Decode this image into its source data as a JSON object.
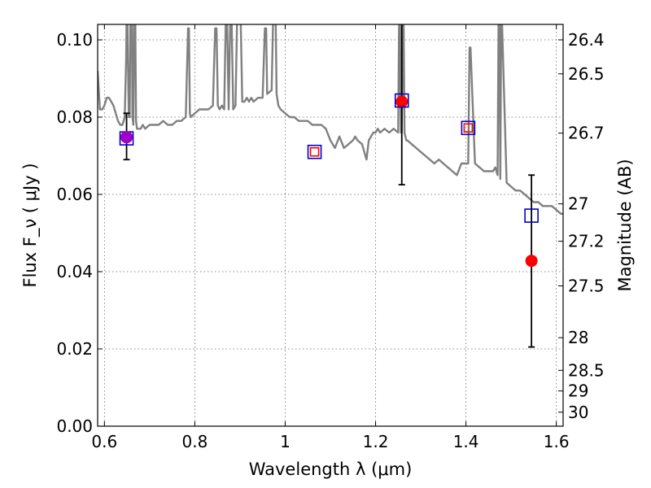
{
  "chart_data": {
    "type": "scatter",
    "title": "",
    "xlabel": "Wavelength  λ (μm)",
    "ylabel": "Flux  F_ν  ( μJy )",
    "ylabel_right": "Magnitude (AB)",
    "xlim": [
      0.585,
      1.615
    ],
    "ylim": [
      0.0,
      0.104
    ],
    "x_ticks": [
      0.6,
      0.8,
      1.0,
      1.2,
      1.4,
      1.6
    ],
    "x_tick_labels": [
      "0.6",
      "0.8",
      "1",
      "1.2",
      "1.4",
      "1.6"
    ],
    "y_ticks": [
      0.0,
      0.02,
      0.04,
      0.06,
      0.08,
      0.1
    ],
    "y_tick_labels": [
      "0.00",
      "0.02",
      "0.04",
      "0.06",
      "0.08",
      "0.10"
    ],
    "right_ticks": [
      {
        "label": "26.4",
        "mag": 26.4
      },
      {
        "label": "26.5",
        "mag": 26.5
      },
      {
        "label": "26.7",
        "mag": 26.7
      },
      {
        "label": "27",
        "mag": 27.0
      },
      {
        "label": "27.2",
        "mag": 27.2
      },
      {
        "label": "27.5",
        "mag": 27.5
      },
      {
        "label": "28",
        "mag": 28.0
      },
      {
        "label": "28.5",
        "mag": 28.5
      },
      {
        "label": "29",
        "mag": 29.0
      },
      {
        "label": "30",
        "mag": 30.0
      }
    ],
    "grid": true,
    "series": [
      {
        "type": "line",
        "color": "#808080",
        "x": [
          0.585,
          0.59,
          0.595,
          0.6,
          0.605,
          0.61,
          0.615,
          0.62,
          0.625,
          0.63,
          0.635,
          0.64,
          0.645,
          0.648,
          0.65,
          0.652,
          0.654,
          0.656,
          0.658,
          0.66,
          0.662,
          0.664,
          0.666,
          0.668,
          0.67,
          0.672,
          0.674,
          0.676,
          0.68,
          0.685,
          0.69,
          0.7,
          0.71,
          0.72,
          0.73,
          0.74,
          0.75,
          0.76,
          0.77,
          0.78,
          0.785,
          0.787,
          0.789,
          0.791,
          0.8,
          0.81,
          0.82,
          0.83,
          0.84,
          0.845,
          0.848,
          0.851,
          0.855,
          0.86,
          0.865,
          0.87,
          0.875,
          0.88,
          0.885,
          0.89,
          0.895,
          0.9,
          0.905,
          0.91,
          0.915,
          0.92,
          0.925,
          0.93,
          0.94,
          0.95,
          0.955,
          0.958,
          0.96,
          0.97,
          0.975,
          0.978,
          0.981,
          0.985,
          0.99,
          1.0,
          1.01,
          1.02,
          1.03,
          1.04,
          1.05,
          1.06,
          1.07,
          1.08,
          1.09,
          1.1,
          1.11,
          1.12,
          1.13,
          1.14,
          1.15,
          1.155,
          1.16,
          1.17,
          1.18,
          1.185,
          1.19,
          1.195,
          1.2,
          1.205,
          1.21,
          1.22,
          1.23,
          1.24,
          1.25,
          1.252,
          1.254,
          1.256,
          1.258,
          1.26,
          1.262,
          1.264,
          1.266,
          1.268,
          1.27,
          1.28,
          1.29,
          1.3,
          1.31,
          1.32,
          1.33,
          1.34,
          1.35,
          1.36,
          1.37,
          1.38,
          1.39,
          1.4,
          1.405,
          1.408,
          1.41,
          1.42,
          1.43,
          1.44,
          1.45,
          1.46,
          1.465,
          1.47,
          1.472,
          1.474,
          1.476,
          1.478,
          1.48,
          1.49,
          1.5,
          1.51,
          1.52,
          1.53,
          1.54,
          1.55,
          1.56,
          1.57,
          1.58,
          1.59,
          1.6,
          1.61,
          1.615
        ],
        "y": [
          0.092,
          0.082,
          0.082,
          0.083,
          0.085,
          0.085,
          0.084,
          0.083,
          0.081,
          0.079,
          0.078,
          0.078,
          0.08,
          0.095,
          0.115,
          0.095,
          0.08,
          0.08,
          0.115,
          0.115,
          0.08,
          0.078,
          0.11,
          0.11,
          0.079,
          0.077,
          0.077,
          0.077,
          0.077,
          0.078,
          0.077,
          0.078,
          0.078,
          0.078,
          0.079,
          0.078,
          0.078,
          0.079,
          0.079,
          0.08,
          0.103,
          0.103,
          0.081,
          0.08,
          0.081,
          0.082,
          0.082,
          0.082,
          0.083,
          0.103,
          0.103,
          0.083,
          0.082,
          0.083,
          0.082,
          0.115,
          0.082,
          0.115,
          0.082,
          0.083,
          0.115,
          0.115,
          0.084,
          0.084,
          0.085,
          0.084,
          0.085,
          0.084,
          0.085,
          0.085,
          0.103,
          0.103,
          0.086,
          0.087,
          0.115,
          0.115,
          0.086,
          0.083,
          0.082,
          0.081,
          0.08,
          0.08,
          0.079,
          0.079,
          0.079,
          0.078,
          0.078,
          0.078,
          0.077,
          0.074,
          0.072,
          0.075,
          0.072,
          0.073,
          0.074,
          0.075,
          0.074,
          0.073,
          0.069,
          0.074,
          0.075,
          0.076,
          0.076,
          0.077,
          0.076,
          0.077,
          0.076,
          0.077,
          0.076,
          0.104,
          0.104,
          0.076,
          0.076,
          0.104,
          0.104,
          0.076,
          0.075,
          0.074,
          0.074,
          0.073,
          0.072,
          0.071,
          0.07,
          0.069,
          0.068,
          0.069,
          0.068,
          0.067,
          0.066,
          0.065,
          0.068,
          0.068,
          0.068,
          0.098,
          0.098,
          0.068,
          0.067,
          0.066,
          0.066,
          0.066,
          0.067,
          0.065,
          0.104,
          0.104,
          0.064,
          0.104,
          0.104,
          0.063,
          0.062,
          0.061,
          0.061,
          0.06,
          0.059,
          0.058,
          0.058,
          0.057,
          0.057,
          0.057,
          0.056,
          0.055,
          0.055
        ]
      },
      {
        "type": "errorbar",
        "color": "#000000",
        "points": [
          {
            "x": 0.649,
            "y": 0.075,
            "ylo": 0.069,
            "yhi": 0.081
          },
          {
            "x": 1.258,
            "y": 0.084,
            "ylo": 0.0625,
            "yhi": 0.105
          },
          {
            "x": 1.545,
            "y": 0.043,
            "ylo": 0.0205,
            "yhi": 0.065
          }
        ]
      },
      {
        "type": "scatter",
        "marker": "circle",
        "color": "#ff0000",
        "points": [
          {
            "x": 0.649,
            "y": 0.0748
          },
          {
            "x": 1.258,
            "y": 0.084
          },
          {
            "x": 1.545,
            "y": 0.0428
          }
        ]
      },
      {
        "type": "scatter",
        "marker": "square-open",
        "color": "#0000cc",
        "points": [
          {
            "x": 0.649,
            "y": 0.0745,
            "size": 16
          },
          {
            "x": 1.065,
            "y": 0.071,
            "size": 16
          },
          {
            "x": 1.258,
            "y": 0.0843,
            "size": 16
          },
          {
            "x": 1.405,
            "y": 0.0772,
            "size": 16
          },
          {
            "x": 1.545,
            "y": 0.0545,
            "size": 16
          }
        ]
      },
      {
        "type": "scatter",
        "marker": "square-open",
        "color": "#ff0000",
        "points": [
          {
            "x": 1.065,
            "y": 0.071,
            "size": 10
          },
          {
            "x": 1.405,
            "y": 0.0772,
            "size": 10
          }
        ]
      },
      {
        "type": "scatter",
        "marker": "circle",
        "color": "#a000c8",
        "points": [
          {
            "x": 0.649,
            "y": 0.0748
          }
        ]
      }
    ]
  }
}
